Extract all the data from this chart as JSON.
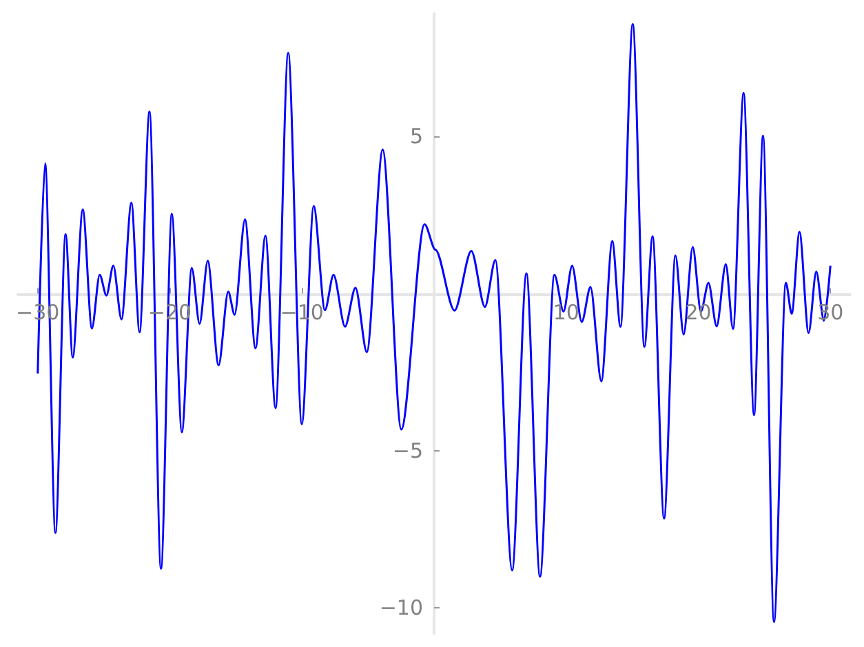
{
  "chart_data": {
    "type": "line",
    "xlim": [
      -31.5,
      31.5
    ],
    "ylim": [
      -10.8,
      8.9
    ],
    "xticks": [
      -30,
      -20,
      -10,
      10,
      20,
      30
    ],
    "yticks": [
      -10,
      -5,
      5
    ],
    "grid": false,
    "x": [
      -30.0,
      -29.44,
      -28.66,
      -27.89,
      -27.35,
      -26.59,
      -25.9,
      -25.31,
      -24.8,
      -24.28,
      -23.66,
      -22.91,
      -22.29,
      -21.54,
      -20.67,
      -19.85,
      -19.09,
      -18.34,
      -17.75,
      -17.13,
      -16.31,
      -15.58,
      -15.1,
      -14.31,
      -13.52,
      -12.76,
      -12.0,
      -11.04,
      -10.01,
      -9.11,
      -8.26,
      -7.61,
      -6.74,
      -5.95,
      -5.09,
      -3.89,
      -2.48,
      -0.72,
      0.1,
      1.55,
      2.82,
      3.85,
      4.64,
      5.91,
      6.99,
      8.02,
      9.11,
      9.8,
      10.45,
      11.18,
      11.84,
      12.66,
      13.49,
      14.11,
      15.04,
      15.92,
      16.54,
      17.41,
      18.27,
      18.89,
      19.58,
      20.2,
      20.77,
      21.39,
      22.08,
      22.63,
      23.43,
      24.22,
      24.9,
      25.73,
      26.63,
      27.07,
      27.66,
      28.35,
      28.93,
      29.51,
      30.0
    ],
    "series": [
      {
        "color": "#0000ff",
        "values": [
          -2.54,
          4.14,
          -7.61,
          1.89,
          -2.03,
          2.68,
          -1.11,
          0.6,
          -0.06,
          0.89,
          -0.82,
          2.89,
          -1.23,
          5.79,
          -8.75,
          2.54,
          -4.41,
          0.82,
          -0.96,
          1.04,
          -2.28,
          0.06,
          -0.67,
          2.36,
          -1.74,
          1.84,
          -3.64,
          7.65,
          -4.15,
          2.79,
          -0.53,
          0.6,
          -1.05,
          0.19,
          -1.86,
          4.58,
          -4.32,
          2.21,
          1.4,
          -0.54,
          1.36,
          -0.42,
          1.07,
          -8.8,
          0.64,
          -9.0,
          0.6,
          -0.57,
          0.89,
          -0.9,
          0.21,
          -2.79,
          1.67,
          -1.05,
          8.57,
          -1.69,
          1.82,
          -7.15,
          1.21,
          -1.3,
          1.48,
          -0.57,
          0.34,
          -1.04,
          0.94,
          -1.12,
          6.38,
          -3.86,
          5.02,
          -10.44,
          0.34,
          -0.64,
          1.96,
          -1.25,
          0.7,
          -0.86,
          0.89
        ]
      }
    ]
  }
}
